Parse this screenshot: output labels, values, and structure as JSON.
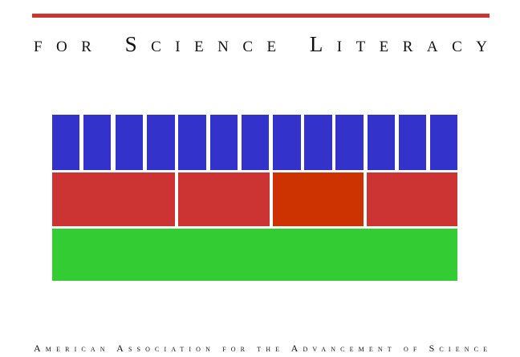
{
  "title": "for Science Literacy",
  "publisher": "American Association for the Advancement of Science"
}
